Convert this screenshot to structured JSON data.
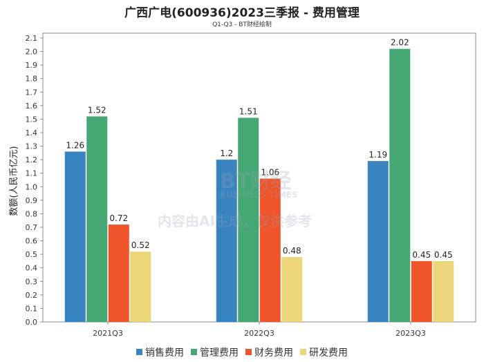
{
  "chart_data": {
    "type": "bar",
    "title": "广西广电(600936)2023三季报 - 费用管理",
    "subtitle": "Q1-Q3 - BT财经绘制",
    "xlabel": "",
    "ylabel": "数额(人民币亿元)",
    "ylim": [
      0,
      2.1
    ],
    "ytick_step": 0.1,
    "grid": false,
    "legend_position": "bottom",
    "categories": [
      "2021Q3",
      "2022Q3",
      "2023Q3"
    ],
    "series": [
      {
        "name": "销售费用",
        "color": "#3a83c1",
        "values": [
          1.26,
          1.2,
          1.19
        ]
      },
      {
        "name": "管理费用",
        "color": "#45a874",
        "values": [
          1.52,
          1.51,
          2.02
        ]
      },
      {
        "name": "财务费用",
        "color": "#f0542a",
        "values": [
          0.72,
          1.06,
          0.45
        ]
      },
      {
        "name": "研发费用",
        "color": "#ecd67a",
        "values": [
          0.52,
          0.48,
          0.45
        ]
      }
    ]
  },
  "watermark": {
    "logo": "BT财经",
    "logo_sub": "BUSINESS TIMES",
    "notice": "内容由AI生成，仅供参考"
  }
}
